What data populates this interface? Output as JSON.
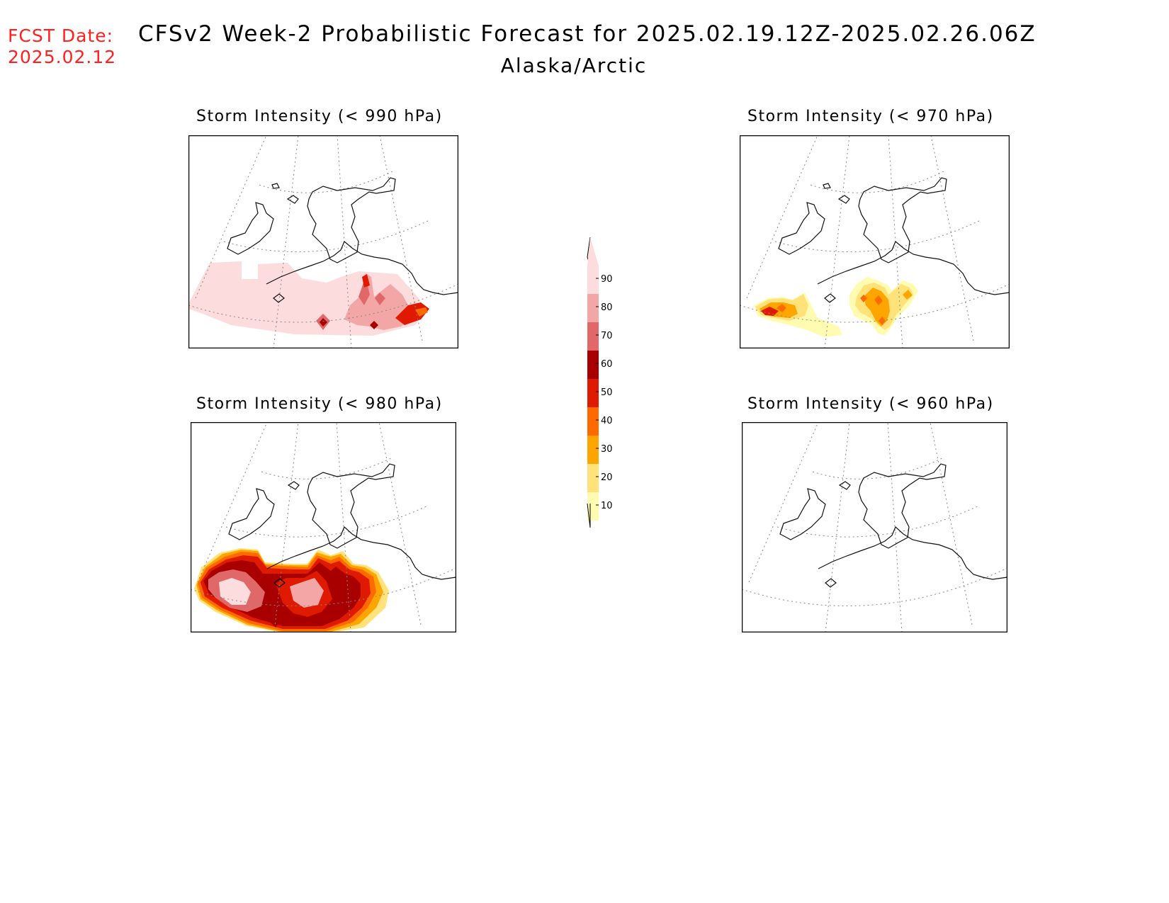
{
  "header": {
    "fcst_label": "FCST Date:",
    "fcst_date": "2025.02.12",
    "title": "CFSv2 Week-2 Probabilistic Forecast for 2025.02.19.12Z-2025.02.26.06Z",
    "subtitle": "Alaska/Arctic"
  },
  "panels": [
    {
      "id": "p990",
      "title": "Storm Intensity (< 990 hPa)"
    },
    {
      "id": "p970",
      "title": "Storm Intensity (< 970 hPa)"
    },
    {
      "id": "p980",
      "title": "Storm Intensity (< 980 hPa)"
    },
    {
      "id": "p960",
      "title": "Storm Intensity (< 960 hPa)"
    }
  ],
  "colorbar": {
    "labels": [
      "90",
      "80",
      "70",
      "60",
      "50",
      "40",
      "30",
      "20",
      "10"
    ],
    "colors": [
      "#fcdcdc",
      "#f2a6a6",
      "#e06868",
      "#a80000",
      "#e01a00",
      "#ff6a00",
      "#ffa500",
      "#ffe27a",
      "#fffbb0"
    ]
  }
}
